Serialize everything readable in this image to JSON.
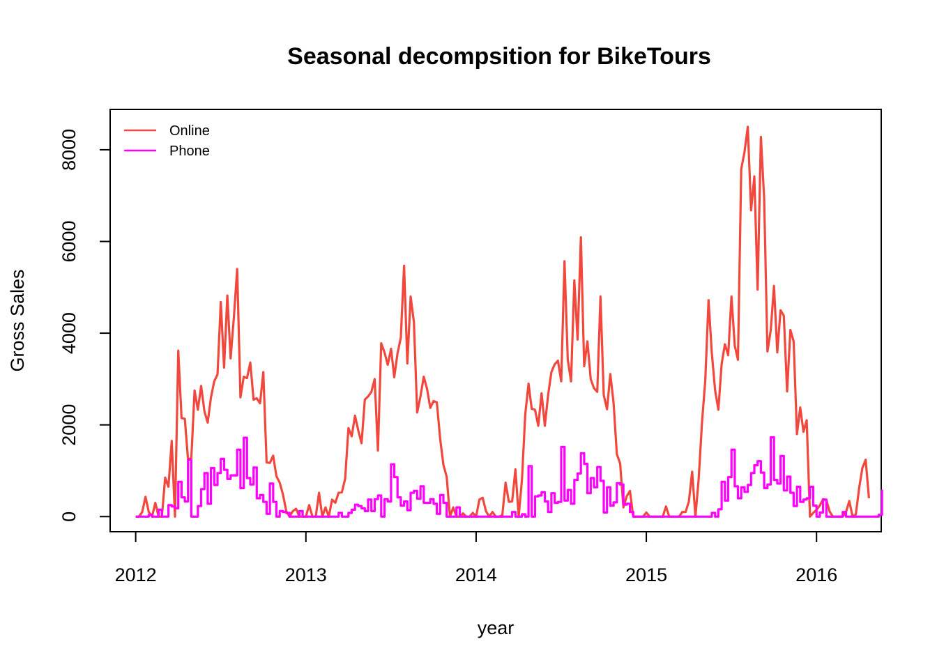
{
  "chart_data": {
    "type": "line",
    "title": "Seasonal decompsition for  BikeTours",
    "xlabel": "year",
    "ylabel": "Gross Sales",
    "xlim": [
      2011.85,
      2016.38
    ],
    "ylim": [
      -330,
      8880
    ],
    "x_ticks": [
      2012,
      2013,
      2014,
      2015,
      2016
    ],
    "x_tick_labels": [
      "2012",
      "2013",
      "2014",
      "2015",
      "2016"
    ],
    "y_ticks": [
      0,
      2000,
      4000,
      6000,
      8000
    ],
    "y_tick_labels": [
      "0",
      "2000",
      "4000",
      "6000",
      "8000"
    ],
    "grid": false,
    "legend_position": "top-left",
    "x_start": 2012.0,
    "x_step": 0.019231,
    "series": [
      {
        "name": "Online",
        "color": "#F2473C",
        "values": [
          0,
          0,
          100,
          430,
          100,
          0,
          300,
          0,
          0,
          850,
          650,
          1650,
          0,
          3620,
          2150,
          2130,
          1250,
          1270,
          2750,
          2330,
          2850,
          2300,
          2050,
          2600,
          2950,
          3100,
          4680,
          3250,
          4820,
          3450,
          4350,
          5400,
          2600,
          3050,
          3020,
          3360,
          2550,
          2580,
          2470,
          3150,
          1180,
          1170,
          1330,
          880,
          740,
          480,
          120,
          0,
          120,
          170,
          0,
          0,
          0,
          250,
          0,
          0,
          520,
          0,
          200,
          0,
          370,
          300,
          520,
          530,
          830,
          1930,
          1750,
          2200,
          1880,
          1600,
          2550,
          2620,
          2720,
          3000,
          1440,
          3780,
          3580,
          3310,
          3660,
          3040,
          3560,
          3900,
          5470,
          3340,
          4800,
          4240,
          2270,
          2620,
          3050,
          2790,
          2370,
          2520,
          2490,
          1700,
          1130,
          870,
          0,
          200,
          0,
          0,
          70,
          0,
          0,
          80,
          0,
          370,
          410,
          120,
          0,
          100,
          0,
          0,
          30,
          740,
          320,
          330,
          1030,
          0,
          810,
          2230,
          2900,
          2350,
          2330,
          1980,
          2690,
          1980,
          2650,
          3150,
          3320,
          3400,
          2950,
          5570,
          3420,
          2950,
          5150,
          3860,
          6090,
          3280,
          3820,
          3000,
          2800,
          2720,
          4800,
          2650,
          2340,
          3110,
          2480,
          1360,
          1160,
          200,
          440,
          560,
          0,
          0,
          0,
          0,
          90,
          0,
          0,
          0,
          0,
          0,
          220,
          0,
          0,
          0,
          0,
          100,
          100,
          330,
          980,
          0,
          830,
          2050,
          2960,
          4720,
          3570,
          2760,
          2330,
          3330,
          3760,
          3520,
          4800,
          3730,
          3420,
          7580,
          7950,
          8500,
          6680,
          7420,
          4950,
          8280,
          6930,
          3600,
          4060,
          5030,
          3580,
          4500,
          4380,
          2730,
          4070,
          3820,
          1800,
          2380,
          1850,
          2100,
          0,
          80,
          150,
          240,
          380,
          360,
          110,
          0,
          0,
          0,
          0,
          100,
          340,
          0,
          50,
          620,
          1060,
          1240,
          400
        ],
        "interp": "linear"
      },
      {
        "name": "Phone",
        "color": "#FF00FF",
        "values": [
          0,
          0,
          0,
          0,
          40,
          0,
          0,
          150,
          0,
          0,
          250,
          220,
          180,
          760,
          420,
          330,
          1240,
          0,
          0,
          230,
          600,
          950,
          280,
          1060,
          690,
          950,
          1260,
          1020,
          820,
          900,
          900,
          1460,
          620,
          1720,
          840,
          700,
          1070,
          400,
          470,
          320,
          60,
          720,
          320,
          0,
          120,
          100,
          80,
          0,
          0,
          0,
          120,
          0,
          0,
          0,
          0,
          0,
          0,
          0,
          0,
          0,
          0,
          0,
          80,
          0,
          0,
          80,
          150,
          260,
          230,
          180,
          120,
          370,
          120,
          380,
          460,
          0,
          380,
          330,
          1140,
          860,
          420,
          240,
          330,
          140,
          520,
          560,
          390,
          660,
          300,
          300,
          380,
          280,
          60,
          470,
          300,
          0,
          0,
          0,
          200,
          0,
          0,
          0,
          0,
          0,
          0,
          0,
          0,
          0,
          0,
          0,
          0,
          0,
          0,
          0,
          0,
          100,
          0,
          0,
          50,
          0,
          1100,
          0,
          440,
          460,
          530,
          330,
          100,
          510,
          300,
          320,
          1520,
          350,
          580,
          280,
          800,
          940,
          1380,
          1150,
          510,
          840,
          640,
          1080,
          780,
          90,
          640,
          240,
          310,
          730,
          700,
          260,
          280,
          100,
          0,
          0,
          0,
          0,
          0,
          0,
          0,
          0,
          0,
          0,
          0,
          0,
          0,
          0,
          0,
          0,
          0,
          0,
          0,
          0,
          0,
          0,
          0,
          0,
          80,
          0,
          160,
          760,
          350,
          860,
          1460,
          660,
          400,
          640,
          540,
          690,
          950,
          1120,
          1210,
          960,
          620,
          700,
          1730,
          800,
          720,
          1320,
          570,
          870,
          520,
          230,
          650,
          320,
          370,
          400,
          650,
          240,
          0,
          90,
          370,
          0,
          0,
          0,
          0,
          0,
          100,
          0,
          0,
          0,
          0,
          0,
          0,
          0,
          0,
          0,
          0,
          40,
          590
        ],
        "interp": "step"
      }
    ]
  }
}
